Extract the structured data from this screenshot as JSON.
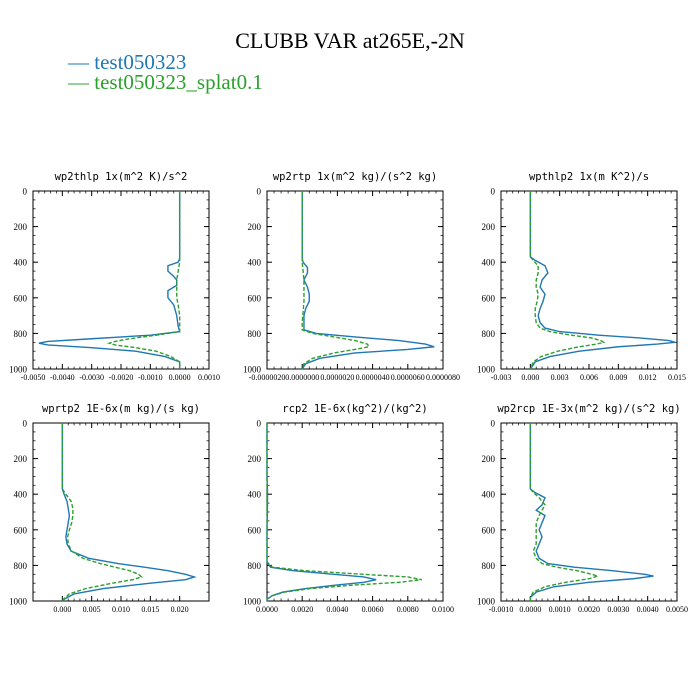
{
  "chart_data": {
    "type": "line",
    "title": "CLUBB VAR at265E,-2N",
    "legend": [
      {
        "name": "test050323",
        "color": "#1f77b4",
        "style": "solid"
      },
      {
        "name": "test050323_splat0.1",
        "color": "#2ca02c",
        "style": "dashed"
      }
    ],
    "panels": [
      {
        "title": "wp2thlp   1x(m^2 K)/s^2",
        "xlim": [
          -0.005,
          0.001
        ],
        "xticks": [
          -0.005,
          -0.004,
          -0.003,
          -0.002,
          -0.001,
          0.0,
          0.001
        ],
        "xticklabels": [
          "-0.0050",
          "-0.0040",
          "-0.0030",
          "-0.0020",
          "-0.0010",
          "0.0000",
          "0.0010"
        ],
        "ylim": [
          0,
          1000
        ],
        "yticks": [
          0,
          200,
          400,
          600,
          800,
          1000
        ],
        "series": [
          {
            "name": "test050323",
            "y": [
              0,
              100,
              200,
              300,
              380,
              400,
              420,
              450,
              480,
              500,
              530,
              560,
              600,
              640,
              700,
              760,
              790,
              810,
              830,
              845,
              855,
              865,
              880,
              900,
              930,
              960,
              990,
              1000
            ],
            "x": [
              0.0,
              0.0,
              0.0,
              0.0,
              0.0,
              -5e-05,
              -0.0004,
              -0.0004,
              -0.0002,
              -0.0001,
              -0.0001,
              -0.0004,
              -0.0004,
              -0.0002,
              -0.0001,
              -5e-05,
              0.0,
              -0.001,
              -0.003,
              -0.0045,
              -0.0048,
              -0.0045,
              -0.003,
              -0.0015,
              -0.0005,
              0.0,
              0.0,
              0.0
            ]
          },
          {
            "name": "test050323_splat0.1",
            "y": [
              0,
              100,
              200,
              300,
              380,
              400,
              450,
              500,
              560,
              600,
              640,
              700,
              760,
              790,
              810,
              830,
              845,
              855,
              865,
              880,
              900,
              930,
              960,
              990,
              1000
            ],
            "x": [
              0.0,
              0.0,
              0.0,
              0.0,
              0.0,
              0.0,
              -5e-05,
              -0.0001,
              -0.0001,
              -0.0001,
              -5e-05,
              0.0,
              0.0,
              0.0,
              -0.0008,
              -0.0017,
              -0.0022,
              -0.0024,
              -0.0022,
              -0.0015,
              -0.0008,
              -0.0003,
              0.0,
              0.0,
              0.0
            ]
          }
        ]
      },
      {
        "title": "wp2rtp   1x(m^2 kg)/(s^2 kg)",
        "xlim": [
          -2e-06,
          8e-06
        ],
        "xticks": [
          -2e-06,
          0.0,
          2e-06,
          4e-06,
          6e-06,
          8e-06
        ],
        "xticklabels": [
          "-0.0000020",
          "0.0000000",
          "0.0000020",
          "0.0000040",
          "0.0000060",
          "0.0000080"
        ],
        "ylim": [
          0,
          1000
        ],
        "yticks": [
          0,
          200,
          400,
          600,
          800,
          1000
        ],
        "series": [
          {
            "name": "test050323",
            "y": [
              0,
              100,
              200,
              300,
              380,
              400,
              430,
              460,
              500,
              540,
              580,
              620,
              660,
              700,
              740,
              780,
              800,
              820,
              840,
              860,
              875,
              890,
              910,
              940,
              970,
              1000
            ],
            "x": [
              0.0,
              0.0,
              0.0,
              0.0,
              0.0,
              5e-08,
              3e-07,
              3e-07,
              1e-07,
              3e-07,
              4e-07,
              4e-07,
              2e-07,
              1e-07,
              1e-07,
              1e-07,
              8e-07,
              3e-06,
              5.5e-06,
              7e-06,
              7.5e-06,
              6e-06,
              3e-06,
              1e-06,
              2e-07,
              0.0
            ]
          },
          {
            "name": "test050323_splat0.1",
            "y": [
              0,
              100,
              200,
              300,
              380,
              400,
              450,
              500,
              560,
              620,
              680,
              740,
              780,
              800,
              820,
              840,
              860,
              875,
              890,
              910,
              940,
              970,
              1000
            ],
            "x": [
              0.0,
              0.0,
              0.0,
              0.0,
              0.0,
              0.0,
              5e-08,
              1e-07,
              1e-07,
              1e-07,
              5e-08,
              0.0,
              0.0,
              6e-07,
              1.8e-06,
              3e-06,
              3.7e-06,
              3.8e-06,
              3e-06,
              1.8e-06,
              6e-07,
              1e-07,
              0.0
            ]
          }
        ]
      },
      {
        "title": "wpthlp2   1x(m K^2)/s",
        "xlim": [
          -0.003,
          0.015
        ],
        "xticks": [
          -0.003,
          0.0,
          0.003,
          0.006,
          0.009,
          0.012,
          0.015
        ],
        "xticklabels": [
          "-0.003",
          "0.000",
          "0.003",
          "0.006",
          "0.009",
          "0.012",
          "0.015"
        ],
        "ylim": [
          0,
          1000
        ],
        "yticks": [
          0,
          200,
          400,
          600,
          800,
          1000
        ],
        "series": [
          {
            "name": "test050323",
            "y": [
              0,
              100,
              200,
              300,
              370,
              390,
              420,
              460,
              500,
              540,
              580,
              620,
              660,
              700,
              740,
              770,
              790,
              810,
              825,
              840,
              850,
              860,
              875,
              900,
              930,
              960,
              1000
            ],
            "x": [
              0.0,
              0.0,
              0.0,
              0.0,
              0.0,
              0.0005,
              0.0015,
              0.0018,
              0.0012,
              0.001,
              0.0015,
              0.0013,
              0.001,
              0.0008,
              0.001,
              0.0015,
              0.003,
              0.007,
              0.011,
              0.0142,
              0.0148,
              0.013,
              0.009,
              0.005,
              0.002,
              0.0005,
              0.0
            ]
          },
          {
            "name": "test050323_splat0.1",
            "y": [
              0,
              100,
              200,
              300,
              370,
              390,
              420,
              460,
              500,
              540,
              580,
              620,
              660,
              700,
              740,
              770,
              790,
              810,
              825,
              840,
              850,
              860,
              875,
              900,
              930,
              960,
              1000
            ],
            "x": [
              0.0,
              0.0,
              0.0,
              0.0,
              0.0,
              0.0003,
              0.0008,
              0.0008,
              0.0006,
              0.0006,
              0.0008,
              0.0007,
              0.0005,
              0.0005,
              0.0006,
              0.001,
              0.002,
              0.0042,
              0.0062,
              0.0072,
              0.0075,
              0.0068,
              0.005,
              0.0028,
              0.0011,
              0.0003,
              0.0
            ]
          }
        ]
      },
      {
        "title": "wprtp2   1E-6x(m kg)/(s kg)",
        "xlim": [
          -0.005,
          0.025
        ],
        "xticks": [
          0.0,
          0.005,
          0.01,
          0.015,
          0.02
        ],
        "xticklabels": [
          "0.000",
          "0.005",
          "0.010",
          "0.015",
          "0.020"
        ],
        "ylim": [
          0,
          1000
        ],
        "yticks": [
          0,
          200,
          400,
          600,
          800,
          1000
        ],
        "series": [
          {
            "name": "test050323",
            "y": [
              0,
              100,
              200,
              300,
              370,
              400,
              440,
              480,
              520,
              560,
              600,
              640,
              680,
              720,
              760,
              790,
              810,
              830,
              850,
              865,
              880,
              900,
              930,
              960,
              990,
              1000
            ],
            "x": [
              0.0,
              0.0,
              0.0,
              0.0,
              0.0,
              0.0003,
              0.0008,
              0.001,
              0.0012,
              0.001,
              0.0008,
              0.0006,
              0.0008,
              0.0015,
              0.0045,
              0.0095,
              0.014,
              0.018,
              0.021,
              0.0225,
              0.021,
              0.015,
              0.007,
              0.002,
              0.0003,
              0.0
            ]
          },
          {
            "name": "test050323_splat0.1",
            "y": [
              0,
              100,
              200,
              300,
              370,
              400,
              440,
              480,
              520,
              560,
              600,
              640,
              680,
              720,
              760,
              790,
              810,
              830,
              850,
              865,
              880,
              900,
              930,
              960,
              990,
              1000
            ],
            "x": [
              0.0,
              0.0,
              0.0,
              0.0,
              0.0,
              0.0006,
              0.0015,
              0.0018,
              0.0018,
              0.0016,
              0.0012,
              0.0009,
              0.001,
              0.0016,
              0.0035,
              0.0065,
              0.009,
              0.0115,
              0.013,
              0.0135,
              0.012,
              0.0085,
              0.004,
              0.0012,
              0.0002,
              0.0
            ]
          }
        ]
      },
      {
        "title": "rcp2   1E-6x(kg^2)/(kg^2)",
        "xlim": [
          0.0,
          0.01
        ],
        "xticks": [
          0.0,
          0.002,
          0.004,
          0.006,
          0.008,
          0.01
        ],
        "xticklabels": [
          "0.0000",
          "0.0020",
          "0.0040",
          "0.0060",
          "0.0080",
          "0.0100"
        ],
        "ylim": [
          0,
          1000
        ],
        "yticks": [
          0,
          200,
          400,
          600,
          800,
          1000
        ],
        "series": [
          {
            "name": "test050323",
            "y": [
              0,
              100,
              200,
              300,
              400,
              500,
              600,
              700,
              780,
              810,
              830,
              850,
              865,
              880,
              895,
              910,
              930,
              950,
              970,
              990,
              1000
            ],
            "x": [
              0.0,
              0.0,
              0.0,
              0.0,
              3e-05,
              2e-05,
              0.0,
              0.0,
              0.0,
              0.0002,
              0.0015,
              0.0038,
              0.0055,
              0.0062,
              0.0055,
              0.004,
              0.0022,
              0.0009,
              0.0003,
              0.0,
              0.0
            ]
          },
          {
            "name": "test050323_splat0.1",
            "y": [
              0,
              100,
              200,
              300,
              400,
              500,
              600,
              700,
              780,
              810,
              830,
              850,
              865,
              880,
              895,
              910,
              930,
              950,
              970,
              990,
              1000
            ],
            "x": [
              0.0,
              0.0,
              0.0,
              0.0,
              0.0,
              0.0,
              0.0,
              0.0,
              0.0,
              0.0003,
              0.0022,
              0.0055,
              0.008,
              0.0088,
              0.0075,
              0.005,
              0.0025,
              0.001,
              0.0003,
              0.0,
              0.0
            ]
          }
        ]
      },
      {
        "title": "wp2rcp   1E-3x(m^2 kg)/(s^2 kg)",
        "xlim": [
          -0.001,
          0.005
        ],
        "xticks": [
          -0.001,
          0.0,
          0.001,
          0.002,
          0.003,
          0.004,
          0.005
        ],
        "xticklabels": [
          "-0.0010",
          "0.0000",
          "0.0010",
          "0.0020",
          "0.0030",
          "0.0040",
          "0.0050"
        ],
        "ylim": [
          0,
          1000
        ],
        "yticks": [
          0,
          200,
          400,
          600,
          800,
          1000
        ],
        "series": [
          {
            "name": "test050323",
            "y": [
              0,
              100,
              200,
              300,
              370,
              390,
              420,
              460,
              490,
              520,
              560,
              600,
              640,
              680,
              720,
              760,
              790,
              810,
              830,
              850,
              860,
              875,
              895,
              920,
              950,
              980,
              1000
            ],
            "x": [
              0.0,
              0.0,
              0.0,
              0.0,
              0.0,
              0.00015,
              0.0005,
              0.0004,
              0.0002,
              0.0005,
              0.0004,
              0.0003,
              0.0004,
              0.0003,
              0.0002,
              0.0003,
              0.0006,
              0.0015,
              0.0028,
              0.0039,
              0.0042,
              0.0035,
              0.002,
              0.0008,
              0.0002,
              0.0,
              0.0
            ]
          },
          {
            "name": "test050323_splat0.1",
            "y": [
              0,
              100,
              200,
              300,
              370,
              390,
              420,
              460,
              490,
              520,
              560,
              600,
              640,
              680,
              720,
              760,
              790,
              810,
              830,
              850,
              860,
              875,
              895,
              920,
              950,
              980,
              1000
            ],
            "x": [
              0.0,
              0.0,
              0.0,
              0.0,
              0.0,
              0.0001,
              0.0003,
              0.0005,
              0.0004,
              0.0003,
              0.0002,
              0.0002,
              0.0002,
              0.0002,
              0.0001,
              0.0002,
              0.0004,
              0.0009,
              0.0016,
              0.0021,
              0.0023,
              0.002,
              0.0012,
              0.0005,
              0.0001,
              0.0,
              0.0
            ]
          }
        ]
      }
    ]
  }
}
